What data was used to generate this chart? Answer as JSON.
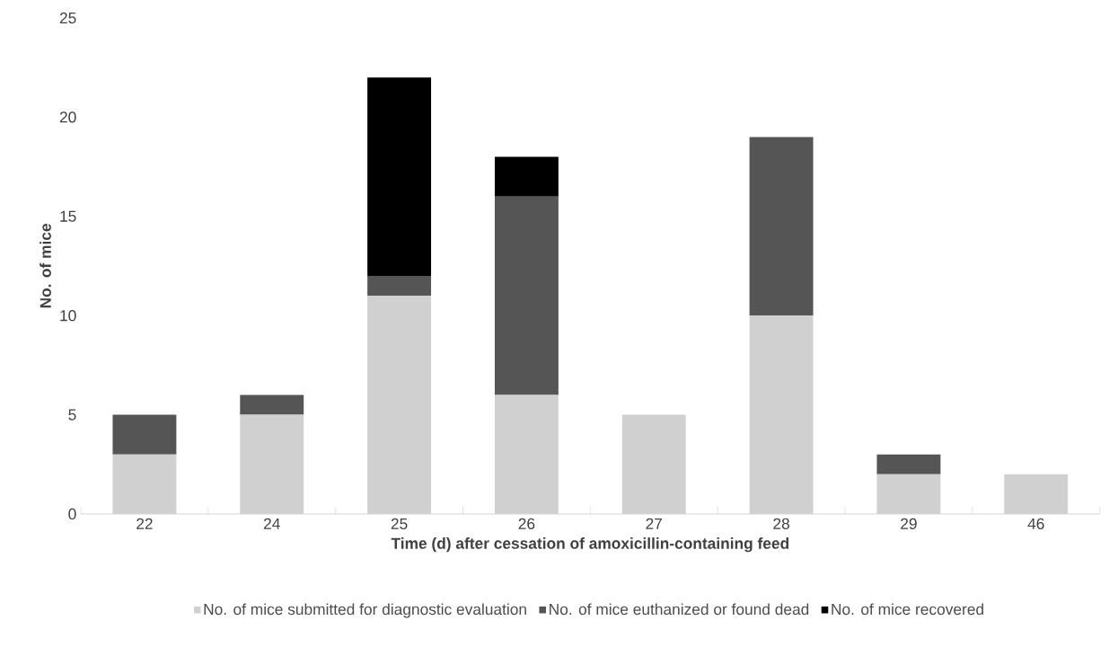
{
  "chart_data": {
    "type": "bar",
    "stacked": true,
    "xlabel": "Time (d) after cessation of amoxicillin-containing feed",
    "ylabel": "No. of mice",
    "categories": [
      "22",
      "24",
      "25",
      "26",
      "27",
      "28",
      "29",
      "46"
    ],
    "series": [
      {
        "name": "No. of mice submitted for diagnostic evaluation",
        "color": "#d0d0d0",
        "values": [
          3,
          5,
          11,
          6,
          5,
          10,
          2,
          2
        ]
      },
      {
        "name": "No. of mice euthanized or found dead",
        "color": "#555555",
        "values": [
          2,
          1,
          1,
          10,
          0,
          9,
          1,
          0
        ]
      },
      {
        "name": "No. of mice recovered",
        "color": "#000000",
        "values": [
          0,
          0,
          10,
          2,
          0,
          0,
          0,
          0
        ]
      }
    ],
    "ylim": [
      0,
      25
    ],
    "yticks": [
      0,
      5,
      10,
      15,
      20,
      25
    ],
    "grid": false,
    "legend": "bottom"
  }
}
